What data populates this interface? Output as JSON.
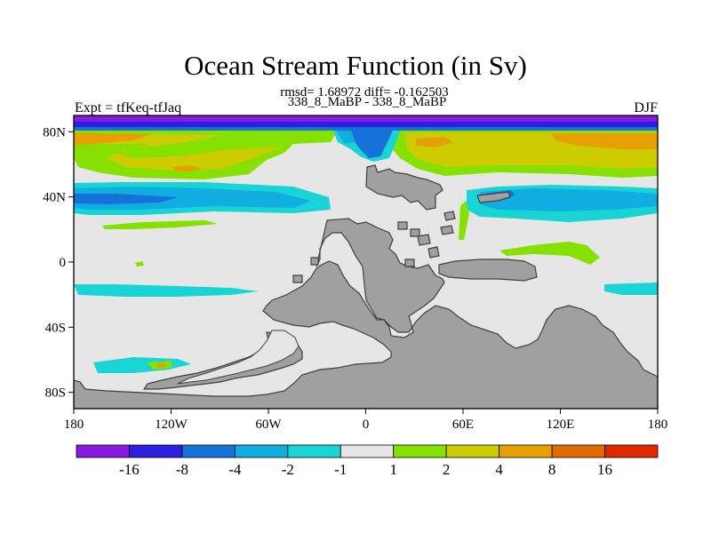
{
  "chart_data": {
    "type": "heatmap",
    "title": "Ocean Stream Function (in Sv)",
    "rmsd_text": "rmsd= 1.68972 diff= -0.162503",
    "subtitle": "338_8_MaBP - 338_8_MaBP",
    "left_label": "Expt = tfKeq-tfJaq",
    "right_label": "DJF",
    "x_ticks": [
      "180",
      "120W",
      "60W",
      "0",
      "60E",
      "120E",
      "180"
    ],
    "y_ticks": [
      "80N",
      "40N",
      "0",
      "40S",
      "80S"
    ],
    "xlim": [
      -180,
      180
    ],
    "ylim": [
      -90,
      90
    ],
    "colorbar": {
      "labels": [
        "-16",
        "-8",
        "-4",
        "-2",
        "-1",
        "1",
        "2",
        "4",
        "8",
        "16"
      ],
      "colors": [
        "#8a1ae0",
        "#2c1fe0",
        "#1672d8",
        "#10aee0",
        "#18d4d4",
        "#e6e6e6",
        "#86e000",
        "#cccc00",
        "#e6a000",
        "#e06a00",
        "#e02800"
      ]
    },
    "land_color": "#a0a0a0",
    "background_color": "#e6e6e6"
  }
}
